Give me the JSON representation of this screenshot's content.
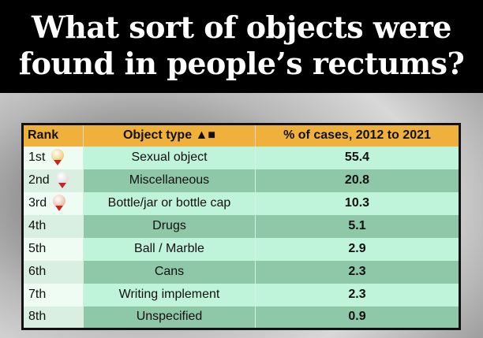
{
  "title": "What sort of objects were found in people’s rectums?",
  "chart_data": {
    "type": "table",
    "columns": [
      "Rank",
      "Object type",
      "% of cases, 2012 to 2021"
    ],
    "rows": [
      {
        "rank": "1st",
        "object": "Sexual object",
        "pct": "55.4",
        "medal": "gold"
      },
      {
        "rank": "2nd",
        "object": "Miscellaneous",
        "pct": "20.8",
        "medal": "silver"
      },
      {
        "rank": "3rd",
        "object": "Bottle/jar or bottle cap",
        "pct": "10.3",
        "medal": "bronze"
      },
      {
        "rank": "4th",
        "object": "Drugs",
        "pct": "5.1"
      },
      {
        "rank": "5th",
        "object": "Ball / Marble",
        "pct": "2.9"
      },
      {
        "rank": "6th",
        "object": "Cans",
        "pct": "2.3"
      },
      {
        "rank": "7th",
        "object": "Writing implement",
        "pct": "2.3"
      },
      {
        "rank": "8th",
        "object": "Unspecified",
        "pct": "0.9"
      }
    ],
    "colors": {
      "header": "#efb13c",
      "row_light": "#bff3da",
      "row_dark": "#8fc7a9",
      "gold": "#e8b830",
      "silver": "#d0d0d0",
      "bronze": "#e0a080"
    }
  }
}
